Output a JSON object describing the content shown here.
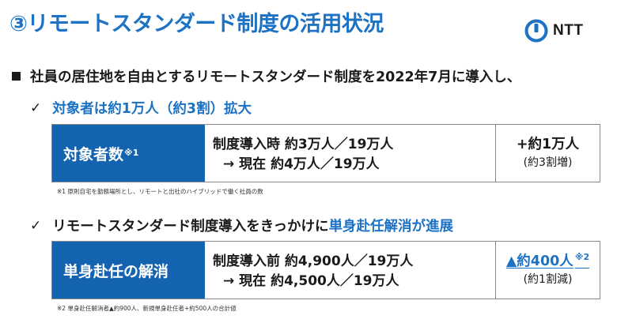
{
  "title": "③リモートスタンダード制度の活用状況",
  "logo": {
    "icon": "ntt-logo-icon",
    "text": "NTT",
    "color": "#1d72c4"
  },
  "lead": "社員の居住地を自由とするリモートスタンダード制度を2022年7月に導入し、",
  "section1": {
    "check": "✓",
    "heading": "対象者は約1万人（約3割）拡大",
    "label": "対象者数",
    "label_mark": "※1",
    "line1": "制度導入時 約3万人／19万人",
    "line2": "→ 現在 約4万人／19万人",
    "result": "+約1万人",
    "result_sub": "(約3割増)",
    "note": "※1 原則自宅を勤務場所とし、リモートと出社のハイブリッドで働く社員の数"
  },
  "section2": {
    "check": "✓",
    "heading_prefix": "リモートスタンダード制度導入をきっかけに",
    "heading_highlight": "単身赴任解消が進展",
    "label": "単身赴任の解消",
    "line1": "制度導入前 約4,900人／19万人",
    "line2": "→ 現在 約4,500人／19万人",
    "result": "▲約400人",
    "result_mark": "※2",
    "result_sub": "(約1割減)",
    "note": "※2 単身赴任解消者▲約900人、新規単身赴任者+約500人の合計値"
  },
  "colors": {
    "accent": "#1d72c4",
    "label_bg": "#1463b0",
    "border": "#8a8a8a"
  }
}
